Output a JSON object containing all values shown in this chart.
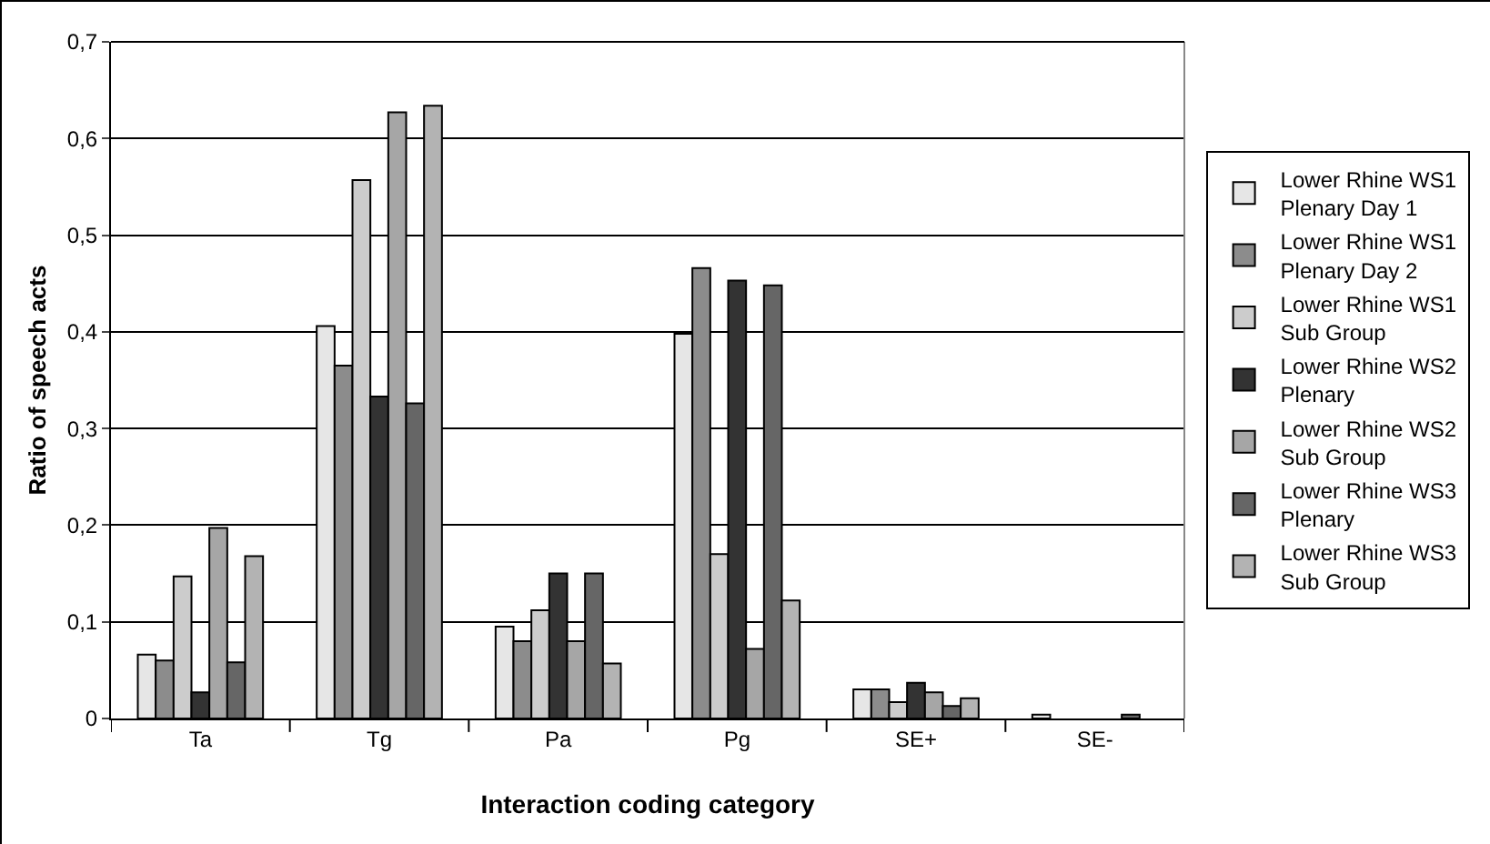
{
  "chart_data": {
    "type": "bar",
    "xlabel": "Interaction coding category",
    "ylabel": "Ratio of speech acts",
    "categories": [
      "Ta",
      "Tg",
      "Pa",
      "Pg",
      "SE+",
      "SE-"
    ],
    "series": [
      {
        "name": "Lower Rhine WS1 Plenary Day 1",
        "color": "#e6e6e6",
        "values": [
          0.066,
          0.406,
          0.095,
          0.398,
          0.03,
          0.004
        ]
      },
      {
        "name": "Lower Rhine WS1 Plenary Day 2",
        "color": "#8c8c8c",
        "values": [
          0.06,
          0.365,
          0.08,
          0.466,
          0.03,
          null
        ]
      },
      {
        "name": "Lower Rhine WS1 Sub Group",
        "color": "#cccccc",
        "values": [
          0.147,
          0.557,
          0.112,
          0.17,
          0.017,
          null
        ]
      },
      {
        "name": "Lower Rhine WS2 Plenary",
        "color": "#333333",
        "values": [
          0.027,
          0.333,
          0.15,
          0.453,
          0.037,
          null
        ]
      },
      {
        "name": "Lower Rhine WS2 Sub Group",
        "color": "#a6a6a6",
        "values": [
          0.197,
          0.627,
          0.08,
          0.072,
          0.027,
          null
        ]
      },
      {
        "name": "Lower Rhine WS3 Plenary",
        "color": "#666666",
        "values": [
          0.058,
          0.326,
          0.15,
          0.448,
          0.013,
          0.004
        ]
      },
      {
        "name": "Lower Rhine WS3 Sub Group",
        "color": "#b3b3b3",
        "values": [
          0.168,
          0.634,
          0.057,
          0.122,
          0.021,
          null
        ]
      }
    ],
    "ylim": [
      0,
      0.7
    ],
    "yticks": [
      0,
      {
        "value": 0.1,
        "label": "0,1"
      },
      {
        "value": 0.2,
        "label": "0,2"
      },
      {
        "value": 0.3,
        "label": "0,3"
      },
      {
        "value": 0.4,
        "label": "0,4"
      },
      {
        "value": 0.5,
        "label": "0,5"
      },
      {
        "value": 0.6,
        "label": "0,6"
      },
      {
        "value": 0.7,
        "label": "0,7"
      }
    ],
    "grid": "y",
    "legend": "right"
  }
}
